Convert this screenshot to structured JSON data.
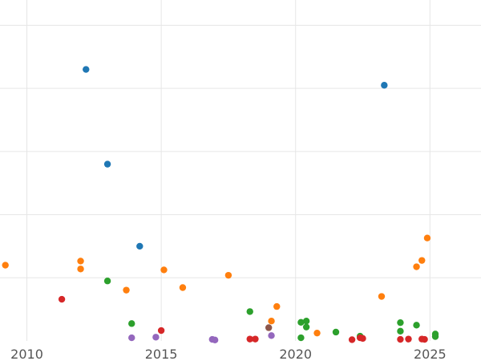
{
  "chart_data": {
    "type": "scatter",
    "title": "",
    "xlabel": "",
    "ylabel": "",
    "xlim": [
      2009.0,
      2026.9
    ],
    "ylim": [
      0,
      108
    ],
    "x_ticks": [
      2010,
      2015,
      2020,
      2025
    ],
    "y_gridlines": [
      20,
      40,
      60,
      80,
      100
    ],
    "grid": true,
    "legend": "none",
    "series": [
      {
        "color": "#1f77b4",
        "points": [
          {
            "x": 2012.2,
            "y": 86.0
          },
          {
            "x": 2013.0,
            "y": 56.0
          },
          {
            "x": 2014.2,
            "y": 30.0
          },
          {
            "x": 2023.3,
            "y": 81.0
          }
        ]
      },
      {
        "color": "#ff7f0e",
        "points": [
          {
            "x": 2009.2,
            "y": 24.0
          },
          {
            "x": 2012.0,
            "y": 25.3
          },
          {
            "x": 2012.0,
            "y": 22.8
          },
          {
            "x": 2013.7,
            "y": 16.1
          },
          {
            "x": 2015.1,
            "y": 22.5
          },
          {
            "x": 2015.8,
            "y": 16.9
          },
          {
            "x": 2017.5,
            "y": 20.8
          },
          {
            "x": 2019.1,
            "y": 6.3
          },
          {
            "x": 2019.3,
            "y": 10.9
          },
          {
            "x": 2020.8,
            "y": 2.5
          },
          {
            "x": 2023.2,
            "y": 14.1
          },
          {
            "x": 2024.5,
            "y": 23.5
          },
          {
            "x": 2024.7,
            "y": 25.5
          },
          {
            "x": 2024.9,
            "y": 32.6
          }
        ]
      },
      {
        "color": "#2ca02c",
        "points": [
          {
            "x": 2013.0,
            "y": 19.0
          },
          {
            "x": 2013.9,
            "y": 5.5
          },
          {
            "x": 2018.3,
            "y": 9.3
          },
          {
            "x": 2020.2,
            "y": 5.9
          },
          {
            "x": 2020.4,
            "y": 6.3
          },
          {
            "x": 2020.4,
            "y": 4.4
          },
          {
            "x": 2020.2,
            "y": 1.0
          },
          {
            "x": 2021.5,
            "y": 2.8
          },
          {
            "x": 2022.4,
            "y": 1.5
          },
          {
            "x": 2023.9,
            "y": 5.8
          },
          {
            "x": 2023.9,
            "y": 3.1
          },
          {
            "x": 2024.5,
            "y": 5.0
          },
          {
            "x": 2025.2,
            "y": 2.2
          },
          {
            "x": 2025.2,
            "y": 1.4
          }
        ]
      },
      {
        "color": "#d62728",
        "points": [
          {
            "x": 2011.3,
            "y": 13.2
          },
          {
            "x": 2015.0,
            "y": 3.3
          },
          {
            "x": 2018.3,
            "y": 0.6
          },
          {
            "x": 2018.5,
            "y": 0.6
          },
          {
            "x": 2022.1,
            "y": 0.4
          },
          {
            "x": 2022.4,
            "y": 1.0
          },
          {
            "x": 2022.5,
            "y": 0.8
          },
          {
            "x": 2023.9,
            "y": 0.5
          },
          {
            "x": 2024.2,
            "y": 0.6
          },
          {
            "x": 2024.7,
            "y": 0.6
          },
          {
            "x": 2024.8,
            "y": 0.5
          }
        ]
      },
      {
        "color": "#9467bd",
        "points": [
          {
            "x": 2013.9,
            "y": 1.0
          },
          {
            "x": 2014.8,
            "y": 1.2
          },
          {
            "x": 2016.9,
            "y": 0.5
          },
          {
            "x": 2017.0,
            "y": 0.3
          },
          {
            "x": 2019.1,
            "y": 1.7
          }
        ]
      },
      {
        "color": "#8c564b",
        "points": [
          {
            "x": 2019.0,
            "y": 4.2
          }
        ]
      }
    ]
  }
}
